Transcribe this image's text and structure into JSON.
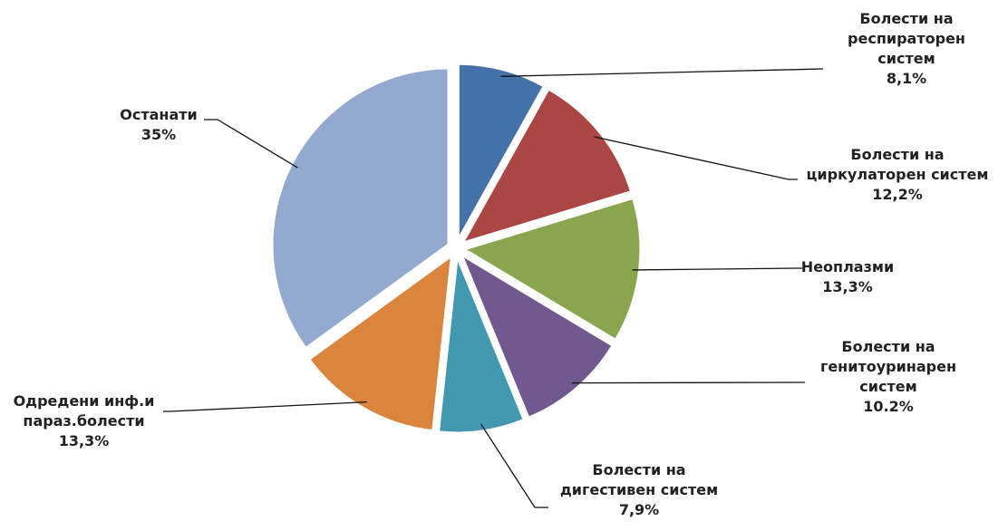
{
  "chart_data": {
    "type": "pie",
    "title": "",
    "legend": "none",
    "slices": [
      {
        "label_lines": [
          "Болести на",
          "респираторен",
          "систем"
        ],
        "value_text": "8,1%",
        "value": 8.1,
        "color": "#4472A8"
      },
      {
        "label_lines": [
          "Болести на",
          "циркулаторен систем"
        ],
        "value_text": "12,2%",
        "value": 12.2,
        "color": "#AA4644"
      },
      {
        "label_lines": [
          "Неоплазми"
        ],
        "value_text": "13,3%",
        "value": 13.3,
        "color": "#89A54E"
      },
      {
        "label_lines": [
          "Болести на",
          "генитоуринарен",
          "систем"
        ],
        "value_text": "10.2%",
        "value": 10.2,
        "color": "#71588F"
      },
      {
        "label_lines": [
          "Болести на",
          "дигестивен систем"
        ],
        "value_text": "7,9%",
        "value": 7.9,
        "color": "#4198AF"
      },
      {
        "label_lines": [
          "Одредени инф.и",
          "параз.болести"
        ],
        "value_text": "13,3%",
        "value": 13.3,
        "color": "#DB843D"
      },
      {
        "label_lines": [
          "Останати"
        ],
        "value_text": "35%",
        "value": 35,
        "color": "#93A9CF"
      }
    ]
  }
}
